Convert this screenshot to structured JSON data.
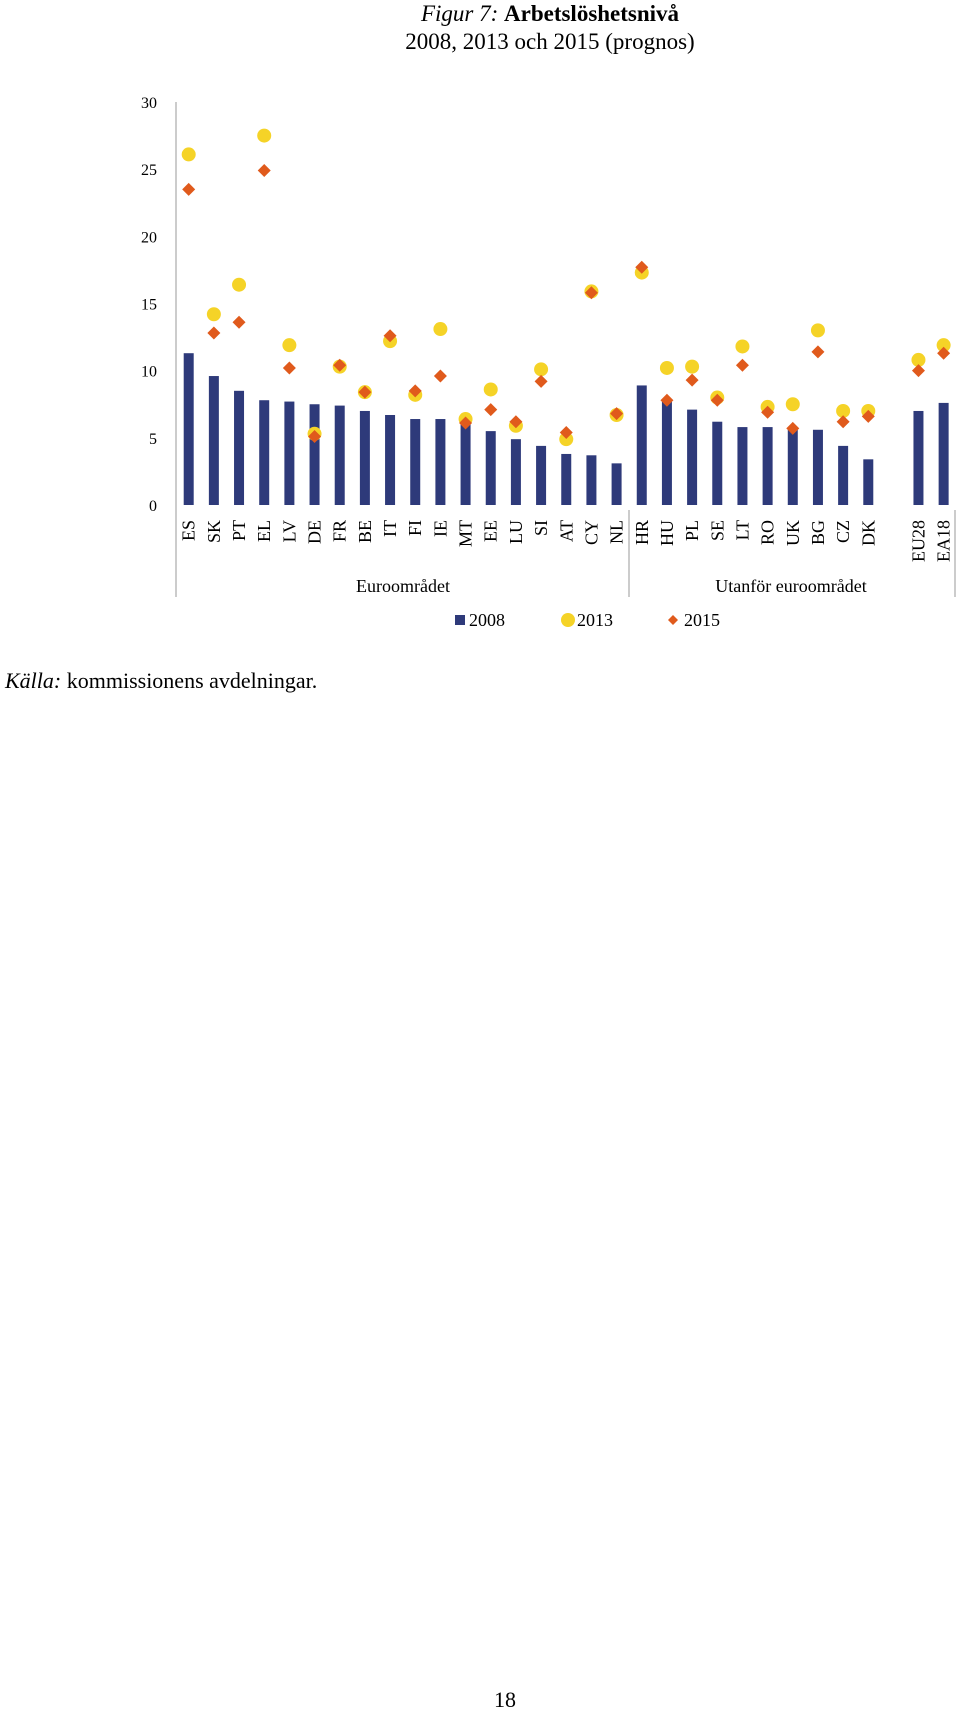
{
  "figure": {
    "label": "Figur 7:",
    "title": "Arbetslöshetsnivå",
    "subtitle": "2008, 2013 och 2015 (prognos)"
  },
  "chart_data": {
    "type": "bar",
    "title": "Arbetslöshetsnivå",
    "subtitle": "2008, 2013 och 2015 (prognos)",
    "xlabel": "",
    "ylabel": "",
    "ylim": [
      0,
      30
    ],
    "yticks": [
      0,
      5,
      10,
      15,
      20,
      25,
      30
    ],
    "grid": false,
    "legend": {
      "position": "bottom"
    },
    "categories": [
      "ES",
      "SK",
      "PT",
      "EL",
      "LV",
      "DE",
      "FR",
      "BE",
      "IT",
      "FI",
      "IE",
      "MT",
      "EE",
      "LU",
      "SI",
      "AT",
      "CY",
      "NL",
      "HR",
      "HU",
      "PL",
      "SE",
      "LT",
      "RO",
      "UK",
      "BG",
      "CZ",
      "DK",
      "EU28",
      "EA18"
    ],
    "groups": [
      {
        "label": "Euroområdet",
        "categories": [
          "ES",
          "SK",
          "PT",
          "EL",
          "LV",
          "DE",
          "FR",
          "BE",
          "IT",
          "FI",
          "IE",
          "MT",
          "EE",
          "LU",
          "SI",
          "AT",
          "CY",
          "NL"
        ]
      },
      {
        "label": "Utanför euroområdet",
        "categories": [
          "HR",
          "HU",
          "PL",
          "SE",
          "LT",
          "RO",
          "UK",
          "BG",
          "CZ",
          "DK"
        ]
      },
      {
        "label": "",
        "categories": [
          "EU28",
          "EA18"
        ]
      }
    ],
    "series": [
      {
        "name": "2008",
        "mark": "bar",
        "color": "#2e3a7a",
        "values": [
          11.3,
          9.6,
          8.5,
          7.8,
          7.7,
          7.5,
          7.4,
          7.0,
          6.7,
          6.4,
          6.4,
          6.0,
          5.5,
          4.9,
          4.4,
          3.8,
          3.7,
          3.1,
          8.9,
          7.8,
          7.1,
          6.2,
          5.8,
          5.8,
          5.6,
          5.6,
          4.4,
          3.4,
          7.0,
          7.6
        ]
      },
      {
        "name": "2013",
        "mark": "circle",
        "color": "#f5d327",
        "values": [
          26.1,
          14.2,
          16.4,
          27.5,
          11.9,
          5.3,
          10.3,
          8.4,
          12.2,
          8.2,
          13.1,
          6.4,
          8.6,
          5.9,
          10.1,
          4.9,
          15.9,
          6.7,
          17.3,
          10.2,
          10.3,
          8.0,
          11.8,
          7.3,
          7.5,
          13.0,
          7.0,
          7.0,
          10.8,
          11.9
        ]
      },
      {
        "name": "2015",
        "mark": "diamond",
        "color": "#e05a1c",
        "values": [
          23.5,
          12.8,
          13.6,
          24.9,
          10.2,
          5.1,
          10.4,
          8.4,
          12.6,
          8.5,
          9.6,
          6.1,
          7.1,
          6.2,
          9.2,
          5.4,
          15.8,
          6.8,
          17.7,
          7.8,
          9.3,
          7.8,
          10.4,
          6.9,
          5.7,
          11.4,
          6.2,
          6.6,
          10.0,
          11.3
        ]
      }
    ]
  },
  "source": {
    "prefix": "Källa:",
    "text": "kommissionens avdelningar."
  },
  "page_number": "18"
}
